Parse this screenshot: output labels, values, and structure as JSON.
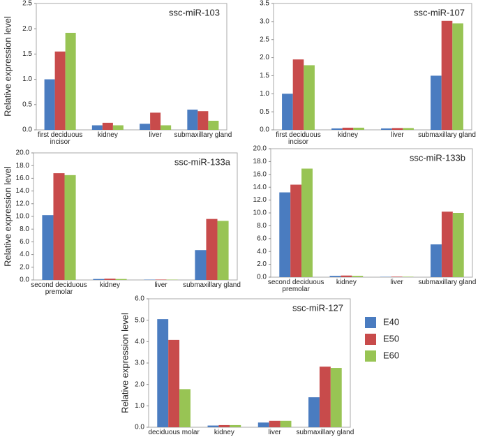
{
  "chart_data": [
    {
      "type": "bar",
      "title": "ssc-miR-103",
      "ylabel": "Relative expression level",
      "categories": [
        "first deciduous incisor",
        "kidney",
        "liver",
        "submaxillary gland"
      ],
      "series": [
        {
          "color": "#4a7cc0",
          "values": [
            1.0,
            0.09,
            0.12,
            0.4
          ]
        },
        {
          "color": "#c84b4b",
          "values": [
            1.55,
            0.14,
            0.34,
            0.37
          ]
        },
        {
          "color": "#98c454",
          "values": [
            1.92,
            0.09,
            0.09,
            0.18
          ]
        }
      ],
      "ylim": [
        0,
        2.5
      ],
      "yticks": [
        {
          "value": 0,
          "label": "0.0"
        },
        0.5,
        {
          "value": 1,
          "label": "1.0"
        },
        1.5,
        {
          "value": 2,
          "label": "2.0"
        },
        2.5
      ]
    },
    {
      "type": "bar",
      "title": "ssc-miR-107",
      "categories": [
        "first deciduous incisor",
        "kidney",
        "liver",
        "submaxillary gland"
      ],
      "series": [
        {
          "color": "#4a7cc0",
          "values": [
            1.0,
            0.04,
            0.04,
            1.5
          ]
        },
        {
          "color": "#c84b4b",
          "values": [
            1.95,
            0.06,
            0.05,
            3.02
          ]
        },
        {
          "color": "#98c454",
          "values": [
            1.79,
            0.06,
            0.05,
            2.95
          ]
        }
      ],
      "ylim": [
        0,
        3.5
      ],
      "yticks": [
        {
          "value": 0,
          "label": "0.0"
        },
        0.5,
        {
          "value": 1,
          "label": "1.0"
        },
        1.5,
        {
          "value": 2,
          "label": "2.0"
        },
        2.5,
        {
          "value": 3,
          "label": "3.0"
        },
        3.5
      ]
    },
    {
      "type": "bar",
      "title": "ssc-miR-133a",
      "ylabel": "Relative expression level",
      "categories": [
        "second deciduous premolar",
        "kidney",
        "liver",
        "submaxillary gland"
      ],
      "series": [
        {
          "color": "#4a7cc0",
          "values": [
            10.2,
            0.15,
            0.05,
            4.7
          ]
        },
        {
          "color": "#c84b4b",
          "values": [
            16.8,
            0.2,
            0.06,
            9.6
          ]
        },
        {
          "color": "#98c454",
          "values": [
            16.5,
            0.15,
            0.05,
            9.3
          ]
        }
      ],
      "ylim": [
        0,
        20
      ],
      "yticks": [
        {
          "value": 0,
          "label": "0.0"
        },
        {
          "value": 2,
          "label": "2.0"
        },
        {
          "value": 4,
          "label": "4.0"
        },
        {
          "value": 6,
          "label": "6.0"
        },
        {
          "value": 8,
          "label": "8.0"
        },
        {
          "value": 10,
          "label": "10.0"
        },
        {
          "value": 12,
          "label": "12.0"
        },
        {
          "value": 14,
          "label": "14.0"
        },
        {
          "value": 16,
          "label": "16.0"
        },
        {
          "value": 18,
          "label": "18.0"
        },
        {
          "value": 20,
          "label": "20.0"
        }
      ]
    },
    {
      "type": "bar",
      "title": "ssc-miR-133b",
      "categories": [
        "second deciduous premolar",
        "kidney",
        "liver",
        "submaxillary gland"
      ],
      "series": [
        {
          "color": "#4a7cc0",
          "values": [
            13.2,
            0.2,
            0.05,
            5.1
          ]
        },
        {
          "color": "#c84b4b",
          "values": [
            14.4,
            0.25,
            0.08,
            10.2
          ]
        },
        {
          "color": "#98c454",
          "values": [
            16.9,
            0.2,
            0.07,
            10.0
          ]
        }
      ],
      "ylim": [
        0,
        20
      ],
      "yticks": [
        {
          "value": 0,
          "label": "0.0"
        },
        {
          "value": 2,
          "label": "2.0"
        },
        {
          "value": 4,
          "label": "4.0"
        },
        {
          "value": 6,
          "label": "6.0"
        },
        {
          "value": 8,
          "label": "8.0"
        },
        {
          "value": 10,
          "label": "10.0"
        },
        {
          "value": 12,
          "label": "12.0"
        },
        {
          "value": 14,
          "label": "14.0"
        },
        {
          "value": 16,
          "label": "16.0"
        },
        {
          "value": 18,
          "label": "18.0"
        },
        {
          "value": 20,
          "label": "20.0"
        }
      ]
    },
    {
      "type": "bar",
      "title": "ssc-miR-127",
      "ylabel": "Relative expression level",
      "legend": "right",
      "categories": [
        "deciduous molar",
        "kidney",
        "liver",
        "submaxillary gland"
      ],
      "series": [
        {
          "name": "E40",
          "color": "#4a7cc0",
          "values": [
            5.05,
            0.08,
            0.22,
            1.4
          ]
        },
        {
          "name": "E50",
          "color": "#c84b4b",
          "values": [
            4.08,
            0.1,
            0.3,
            2.83
          ]
        },
        {
          "name": "E60",
          "color": "#98c454",
          "values": [
            1.78,
            0.1,
            0.3,
            2.77
          ]
        }
      ],
      "ylim": [
        0,
        6
      ],
      "yticks": [
        {
          "value": 0,
          "label": "0.0"
        },
        {
          "value": 1,
          "label": "1.0"
        },
        {
          "value": 2,
          "label": "2.0"
        },
        {
          "value": 3,
          "label": "3.0"
        },
        {
          "value": 4,
          "label": "4.0"
        },
        {
          "value": 5,
          "label": "5.0"
        },
        {
          "value": 6,
          "label": "6.0"
        }
      ]
    }
  ]
}
